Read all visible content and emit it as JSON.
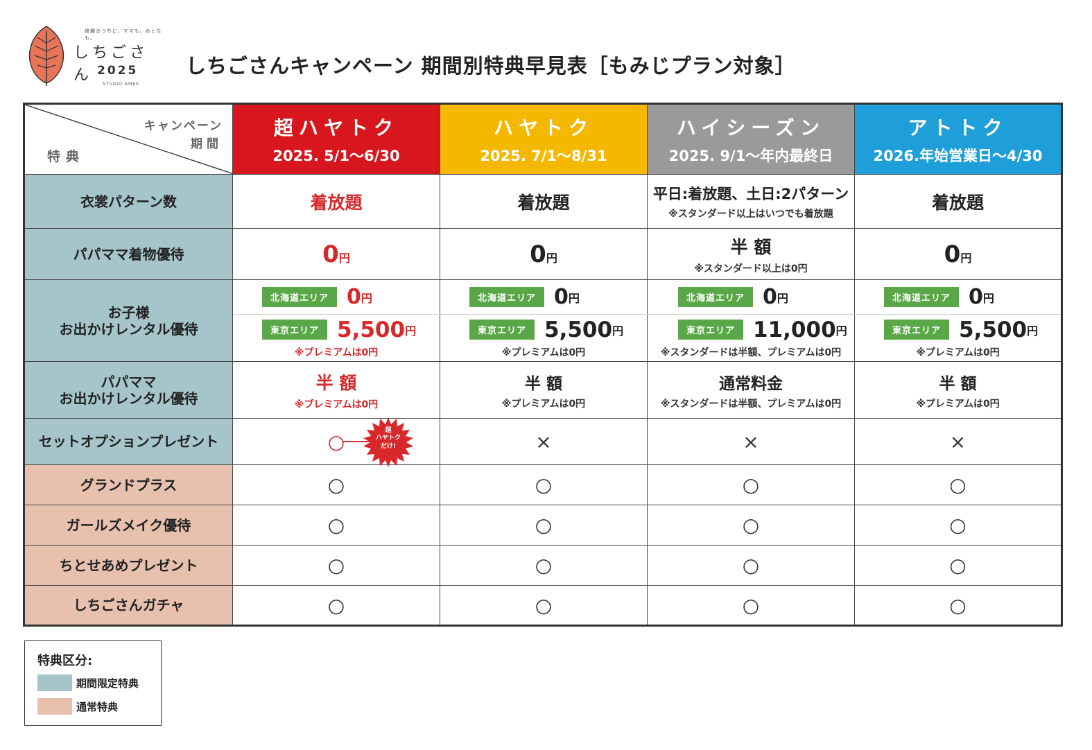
{
  "logo": {
    "tagline": "綺麗のうちに、ママも、おとなも。",
    "name": "しちごさん",
    "year": "2025",
    "studio": "STUDIO AMBE"
  },
  "title": "しちごさんキャンペーン 期間別特典早見表［もみじプラン対象］",
  "colors": {
    "phase1": "#d7161e",
    "phase2": "#f4b800",
    "phase3": "#9a9a9a",
    "phase4": "#1f9fd9",
    "limited": "#a5c5cb",
    "regular": "#e8c0ae",
    "badge": "#5aa748",
    "accent_red": "#d7282b"
  },
  "table": {
    "corner": {
      "campaign": "キャンペーン",
      "period": "期間",
      "perk": "特典"
    },
    "phases": [
      {
        "name": "超ハヤトク",
        "dates": "2025. 5/1～6/30"
      },
      {
        "name": "ハヤトク",
        "dates": "2025. 7/1～8/31"
      },
      {
        "name": "ハイシーズン",
        "dates": "2025. 9/1～年内最終日"
      },
      {
        "name": "アトトク",
        "dates": "2026.年始営業日～4/30"
      }
    ],
    "costume": {
      "label": "衣裳パターン数",
      "values": [
        "着放題",
        "着放題",
        "平日:着放題、土日:2パターン",
        "着放題"
      ],
      "note3": "※スタンダード以上はいつでも着放題"
    },
    "parent_kimono": {
      "label": "パパママ着物優待",
      "values": [
        "0",
        "0",
        "半 額",
        "0"
      ],
      "yen": "円",
      "note3": "※スタンダード以上は0円"
    },
    "child_rental": {
      "label_line1": "お子様",
      "label_line2": "お出かけレンタル優待",
      "hokkaido_badge": "北海道エリア",
      "tokyo_badge": "東京エリア",
      "hokkaido_values": [
        "0",
        "0",
        "0",
        "0"
      ],
      "tokyo_values": [
        "5,500",
        "5,500",
        "11,000",
        "5,500"
      ],
      "yen": "円",
      "notes": [
        "※プレミアムは0円",
        "※プレミアムは0円",
        "※スタンダードは半額、プレミアムは0円",
        "※プレミアムは0円"
      ]
    },
    "parent_rental": {
      "label_line1": "パパママ",
      "label_line2": "お出かけレンタル優待",
      "values": [
        "半 額",
        "半 額",
        "通常料金",
        "半 額"
      ],
      "notes": [
        "※プレミアムは0円",
        "※プレミアムは0円",
        "※スタンダードは半額、プレミアムは0円",
        "※プレミアムは0円"
      ]
    },
    "set_option": {
      "label": "セットオプションプレゼント",
      "values": [
        "○",
        "×",
        "×",
        "×"
      ],
      "burst_line1": "超",
      "burst_line2": "ハヤトク",
      "burst_line3": "だけ!"
    },
    "grand_plus": {
      "label": "グランドプラス",
      "values": [
        "○",
        "○",
        "○",
        "○"
      ]
    },
    "girls_makeup": {
      "label": "ガールズメイク優待",
      "values": [
        "○",
        "○",
        "○",
        "○"
      ]
    },
    "chitose": {
      "label": "ちとせあめプレゼント",
      "values": [
        "○",
        "○",
        "○",
        "○"
      ]
    },
    "gacha": {
      "label": "しちごさんガチャ",
      "values": [
        "○",
        "○",
        "○",
        "○"
      ]
    }
  },
  "legend": {
    "title": "特典区分:",
    "limited": "期間限定特典",
    "regular": "通常特典"
  }
}
